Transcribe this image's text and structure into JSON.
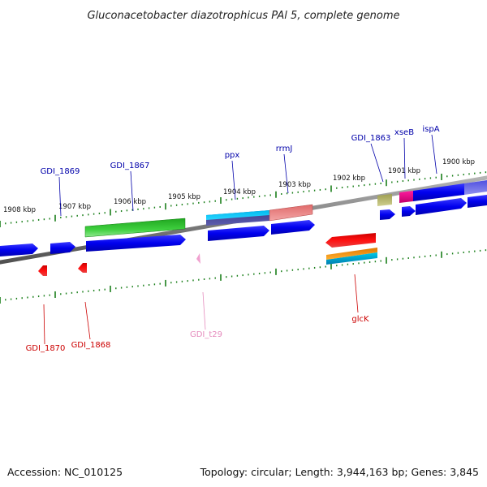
{
  "title": "Gluconacetobacter diazotrophicus PAl 5, complete genome",
  "footer": {
    "accession": "Accession: NC_010125",
    "topology": "Topology: circular; Length: 3,944,163 bp; Genes: 3,845"
  },
  "colors": {
    "backbone": "#808080",
    "tick": "#1a7f1a",
    "forward_label": "#0000aa",
    "reverse_label": "#cc0000",
    "trna_label": "#e58bbd"
  },
  "kbp_labels": [
    "1908 kbp",
    "1907 kbp",
    "1906 kbp",
    "1905 kbp",
    "1904 kbp",
    "1903 kbp",
    "1902 kbp",
    "1901 kbp",
    "1900 kbp"
  ],
  "gene_labels": {
    "gdi1869": "GDI_1869",
    "gdi1867": "GDI_1867",
    "ppx": "ppx",
    "rrmj": "rrmJ",
    "gdi1863": "GDI_1863",
    "xseb": "xseB",
    "ispa": "ispA",
    "gdi1870": "GDI_1870",
    "gdi1868": "GDI_1868",
    "gdit29": "GDI_t29",
    "glck": "glcK"
  }
}
